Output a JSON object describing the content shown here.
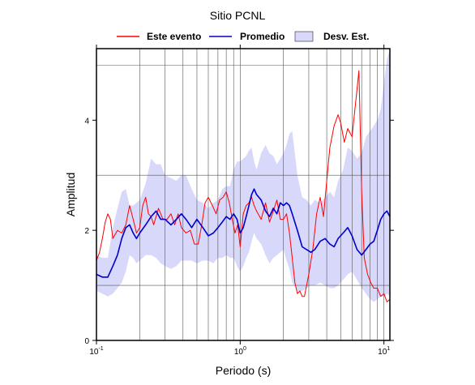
{
  "chart_data": {
    "type": "line",
    "title": "Sitio PCNL",
    "xlabel": "Periodo (s)",
    "ylabel": "Amplitud",
    "x_scale": "log",
    "xlim": [
      0.1,
      11
    ],
    "ylim": [
      0,
      5.3
    ],
    "grid": "vertical log grid lines; horizontal lines at y = 1, 3, 5",
    "legend_placement": "top, above plot",
    "x_ticks": [
      {
        "value": 0.1,
        "base": "10",
        "exp": "-1"
      },
      {
        "value": 1,
        "base": "10",
        "exp": "0"
      },
      {
        "value": 10,
        "base": "10",
        "exp": "1"
      }
    ],
    "y_ticks": [
      "0",
      "2",
      "4"
    ],
    "y_tick_values": [
      0,
      2,
      4
    ],
    "colors": {
      "event": "#ff0000",
      "mean": "#0000cc",
      "band": "#d8d8fa"
    },
    "series": [
      {
        "name": "Este evento",
        "x": [
          0.1,
          0.105,
          0.11,
          0.115,
          0.12,
          0.125,
          0.13,
          0.14,
          0.15,
          0.16,
          0.17,
          0.18,
          0.19,
          0.2,
          0.21,
          0.22,
          0.23,
          0.24,
          0.25,
          0.27,
          0.29,
          0.31,
          0.33,
          0.35,
          0.37,
          0.39,
          0.42,
          0.45,
          0.48,
          0.51,
          0.54,
          0.57,
          0.6,
          0.64,
          0.68,
          0.72,
          0.76,
          0.8,
          0.84,
          0.88,
          0.92,
          0.96,
          1.0,
          1.05,
          1.1,
          1.15,
          1.2,
          1.25,
          1.3,
          1.4,
          1.5,
          1.6,
          1.7,
          1.8,
          1.9,
          2.0,
          2.1,
          2.2,
          2.3,
          2.4,
          2.5,
          2.6,
          2.7,
          2.8,
          3.0,
          3.2,
          3.4,
          3.6,
          3.8,
          4.0,
          4.2,
          4.5,
          4.8,
          5.0,
          5.3,
          5.6,
          6.0,
          6.4,
          6.7,
          7.0,
          7.3,
          7.7,
          8.1,
          8.5,
          9.0,
          9.5,
          10.0,
          10.5,
          11.0
        ],
        "values": [
          1.45,
          1.6,
          1.85,
          2.15,
          2.3,
          2.2,
          1.85,
          2.0,
          1.95,
          2.1,
          2.45,
          2.2,
          1.95,
          2.05,
          2.45,
          2.6,
          2.3,
          2.25,
          2.1,
          2.4,
          2.2,
          2.2,
          2.3,
          2.1,
          2.3,
          2.05,
          1.95,
          2.0,
          1.75,
          1.75,
          2.1,
          2.5,
          2.6,
          2.45,
          2.3,
          2.55,
          2.6,
          2.7,
          2.5,
          2.2,
          1.95,
          2.1,
          1.7,
          2.3,
          2.45,
          2.5,
          2.6,
          2.45,
          2.35,
          2.2,
          2.5,
          2.15,
          2.35,
          2.55,
          2.2,
          2.2,
          2.3,
          1.95,
          1.5,
          1.05,
          0.85,
          0.9,
          0.8,
          0.8,
          1.2,
          1.65,
          2.3,
          2.6,
          2.25,
          2.9,
          3.5,
          3.9,
          4.1,
          3.95,
          3.6,
          3.85,
          3.7,
          4.4,
          4.9,
          2.7,
          1.5,
          1.2,
          1.05,
          0.95,
          0.95,
          0.8,
          0.85,
          0.7,
          0.75
        ]
      },
      {
        "name": "Promedio",
        "x": [
          0.1,
          0.11,
          0.12,
          0.13,
          0.14,
          0.15,
          0.16,
          0.17,
          0.18,
          0.19,
          0.2,
          0.22,
          0.24,
          0.26,
          0.28,
          0.3,
          0.33,
          0.36,
          0.39,
          0.42,
          0.46,
          0.5,
          0.55,
          0.6,
          0.65,
          0.7,
          0.75,
          0.8,
          0.85,
          0.9,
          0.95,
          1.0,
          1.05,
          1.1,
          1.15,
          1.2,
          1.25,
          1.3,
          1.4,
          1.5,
          1.6,
          1.7,
          1.8,
          1.9,
          2.0,
          2.1,
          2.2,
          2.3,
          2.5,
          2.7,
          2.9,
          3.1,
          3.3,
          3.6,
          3.9,
          4.2,
          4.5,
          4.8,
          5.2,
          5.6,
          6.0,
          6.5,
          7.0,
          7.5,
          8.0,
          8.5,
          9.0,
          9.5,
          10.0,
          10.5,
          11.0
        ],
        "values": [
          1.2,
          1.15,
          1.15,
          1.35,
          1.55,
          1.85,
          2.05,
          2.1,
          1.95,
          1.85,
          1.95,
          2.1,
          2.25,
          2.35,
          2.2,
          2.2,
          2.1,
          2.2,
          2.3,
          2.2,
          2.05,
          2.2,
          2.05,
          1.9,
          1.95,
          2.05,
          2.15,
          2.25,
          2.2,
          2.3,
          2.2,
          1.95,
          2.05,
          2.25,
          2.45,
          2.65,
          2.75,
          2.65,
          2.55,
          2.35,
          2.25,
          2.4,
          2.3,
          2.5,
          2.45,
          2.5,
          2.45,
          2.3,
          2.0,
          1.7,
          1.65,
          1.6,
          1.65,
          1.8,
          1.85,
          1.75,
          1.7,
          1.85,
          1.95,
          2.05,
          1.9,
          1.65,
          1.55,
          1.65,
          1.75,
          1.8,
          2.0,
          2.2,
          2.3,
          2.35,
          2.25
        ]
      },
      {
        "name": "Desv. Est.",
        "type": "band",
        "x": [
          0.1,
          0.11,
          0.12,
          0.13,
          0.14,
          0.15,
          0.16,
          0.17,
          0.18,
          0.19,
          0.2,
          0.22,
          0.24,
          0.26,
          0.28,
          0.3,
          0.33,
          0.36,
          0.39,
          0.42,
          0.46,
          0.5,
          0.55,
          0.6,
          0.65,
          0.7,
          0.75,
          0.8,
          0.85,
          0.9,
          0.95,
          1.0,
          1.05,
          1.1,
          1.15,
          1.2,
          1.25,
          1.3,
          1.4,
          1.5,
          1.6,
          1.7,
          1.8,
          1.9,
          2.0,
          2.1,
          2.2,
          2.3,
          2.5,
          2.7,
          2.9,
          3.1,
          3.3,
          3.6,
          3.9,
          4.2,
          4.5,
          4.8,
          5.2,
          5.6,
          6.0,
          6.5,
          7.0,
          7.5,
          8.0,
          8.5,
          9.0,
          9.5,
          10.0,
          10.5,
          11.0
        ],
        "upper": [
          1.55,
          1.5,
          1.5,
          2.05,
          2.4,
          2.7,
          2.75,
          2.45,
          2.45,
          2.5,
          2.55,
          2.85,
          3.3,
          3.2,
          3.2,
          3.0,
          2.95,
          2.9,
          3.0,
          3.0,
          2.75,
          2.55,
          2.5,
          2.4,
          2.5,
          2.55,
          2.75,
          2.8,
          2.8,
          3.1,
          3.25,
          3.25,
          3.3,
          3.35,
          3.45,
          3.5,
          3.25,
          3.1,
          3.4,
          3.55,
          3.4,
          3.35,
          3.2,
          3.3,
          3.4,
          3.55,
          3.75,
          3.8,
          3.0,
          2.6,
          2.55,
          2.45,
          2.55,
          2.5,
          2.6,
          2.7,
          2.6,
          2.9,
          3.1,
          3.5,
          3.45,
          3.3,
          3.4,
          3.7,
          3.8,
          3.9,
          4.0,
          4.2,
          4.7,
          5.1,
          5.3
        ],
        "lower": [
          0.9,
          0.85,
          0.8,
          0.85,
          0.95,
          1.05,
          1.25,
          1.55,
          1.5,
          1.4,
          1.45,
          1.55,
          1.55,
          1.5,
          1.4,
          1.35,
          1.3,
          1.35,
          1.45,
          1.45,
          1.45,
          1.4,
          1.45,
          1.45,
          1.4,
          1.5,
          1.5,
          1.55,
          1.5,
          1.5,
          1.35,
          1.25,
          1.35,
          1.5,
          1.6,
          1.8,
          1.95,
          1.85,
          1.75,
          1.55,
          1.4,
          1.5,
          1.55,
          1.6,
          1.65,
          1.45,
          1.3,
          1.05,
          0.9,
          0.9,
          0.95,
          1.0,
          1.0,
          1.05,
          1.0,
          0.95,
          0.95,
          1.0,
          1.1,
          1.2,
          1.25,
          1.1,
          0.95,
          0.85,
          0.75,
          0.7,
          0.75,
          0.8,
          0.8,
          0.85,
          0.8
        ]
      }
    ]
  }
}
